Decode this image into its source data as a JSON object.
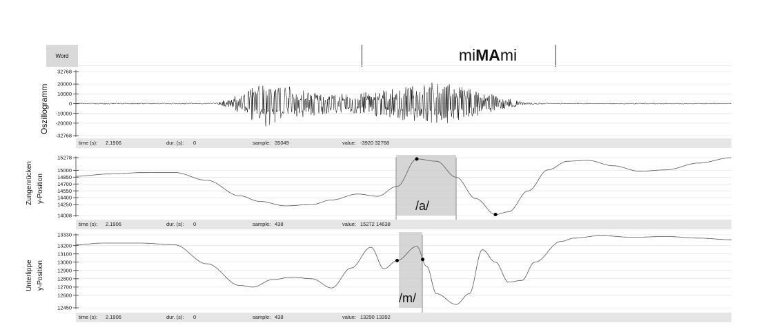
{
  "word_tier": {
    "tag": "Word",
    "word_parts": [
      "mi",
      "MA",
      "mi"
    ]
  },
  "panels": [
    {
      "id": "osc",
      "ylabel_lines": [
        "Oszillogramm"
      ],
      "yticks": [
        32768,
        20000,
        10000,
        0,
        -10000,
        -20000,
        -32768
      ],
      "info": {
        "time_label": "time (s):",
        "time": "2.1906",
        "dur_label": "dur. (s):",
        "dur": "0",
        "sample_label": "sample:",
        "sample": "35049",
        "value_label": "value:",
        "value": "-3920 32768"
      }
    },
    {
      "id": "tongue",
      "ylabel_lines": [
        "Zungenrücken",
        "y-Position"
      ],
      "yticks": [
        15278,
        15000,
        14850,
        14700,
        14550,
        14400,
        14250,
        14008
      ],
      "segment": "/a/",
      "info": {
        "time_label": "time (s):",
        "time": "2.1906",
        "dur_label": "dur. (s):",
        "dur": "0",
        "sample_label": "sample:",
        "sample": "438",
        "value_label": "value:",
        "value": "15272 14638"
      }
    },
    {
      "id": "lip",
      "ylabel_lines": [
        "Unterlippe",
        "y-Position"
      ],
      "yticks": [
        13330,
        13200,
        13100,
        13000,
        12900,
        12800,
        12700,
        12600,
        12450
      ],
      "segment": "/m/",
      "info": {
        "time_label": "time (s):",
        "time": "2.1906",
        "dur_label": "dur. (s):",
        "dur": "0",
        "sample_label": "sample:",
        "sample": "438",
        "value_label": "value:",
        "value": "13290 13392"
      }
    }
  ],
  "chart_data": [
    {
      "type": "line",
      "title": "",
      "xlabel": "",
      "ylabel": "Oszillogramm",
      "ylim": [
        -32768,
        32768
      ],
      "x": [
        0.0,
        0.21,
        0.23,
        0.25,
        0.27,
        0.29,
        0.31,
        0.35,
        0.39,
        0.43,
        0.47,
        0.51,
        0.55,
        0.59,
        0.63,
        0.66,
        0.69,
        0.73,
        1.0
      ],
      "series": [
        {
          "name": "",
          "values": [
            600,
            600,
            4000,
            9000,
            17000,
            24000,
            20000,
            14000,
            10000,
            11000,
            14000,
            18000,
            23000,
            17000,
            10000,
            5000,
            1000,
            500,
            500
          ]
        }
      ]
    },
    {
      "type": "line",
      "title": "",
      "xlabel": "",
      "ylabel": "Zungenrücken y-Position",
      "ylim": [
        14008,
        15278
      ],
      "x": [
        0.0,
        0.05,
        0.1,
        0.15,
        0.2,
        0.25,
        0.28,
        0.32,
        0.36,
        0.39,
        0.43,
        0.46,
        0.49,
        0.52,
        0.55,
        0.58,
        0.61,
        0.64,
        0.66,
        0.69,
        0.72,
        0.75,
        0.78,
        0.82,
        0.86,
        0.9,
        0.95,
        1.0
      ],
      "series": [
        {
          "name": "",
          "values": [
            14870,
            14920,
            14950,
            14955,
            14780,
            14440,
            14320,
            14220,
            14250,
            14350,
            14480,
            14430,
            14650,
            15250,
            15200,
            14850,
            14380,
            14030,
            14090,
            14550,
            15010,
            15200,
            15220,
            15100,
            14980,
            15010,
            15160,
            15278
          ]
        }
      ]
    },
    {
      "type": "line",
      "title": "",
      "xlabel": "",
      "ylabel": "Unterlippe y-Position",
      "ylim": [
        12450,
        13330
      ],
      "x": [
        0.0,
        0.04,
        0.1,
        0.15,
        0.2,
        0.25,
        0.27,
        0.3,
        0.33,
        0.36,
        0.39,
        0.42,
        0.45,
        0.47,
        0.49,
        0.52,
        0.535,
        0.55,
        0.58,
        0.6,
        0.62,
        0.64,
        0.66,
        0.68,
        0.7,
        0.74,
        0.76,
        0.8,
        0.85,
        0.9,
        0.95,
        1.0
      ],
      "series": [
        {
          "name": "",
          "values": [
            13210,
            13230,
            13230,
            13210,
            12980,
            12720,
            12700,
            12790,
            12820,
            12800,
            12690,
            12930,
            13180,
            12920,
            13020,
            13190,
            12950,
            12620,
            12490,
            12620,
            13150,
            13000,
            12760,
            12780,
            13000,
            13250,
            13290,
            13320,
            13300,
            13310,
            13290,
            13270
          ]
        }
      ]
    }
  ]
}
